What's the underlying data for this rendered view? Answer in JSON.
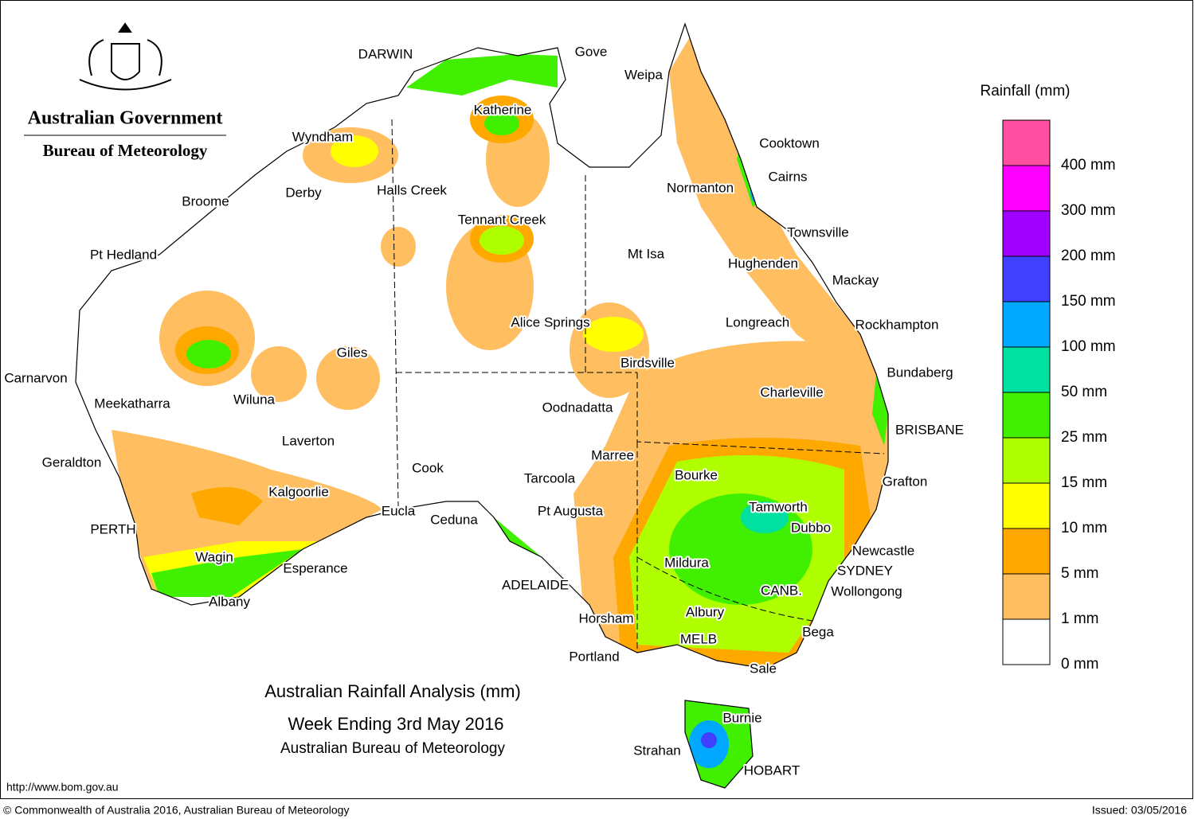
{
  "header": {
    "government": "Australian Government",
    "bureau": "Bureau of Meteorology"
  },
  "title": {
    "main": "Australian Rainfall Analysis (mm)",
    "period": "Week Ending 3rd May 2016",
    "source": "Australian Bureau of Meteorology"
  },
  "legend": {
    "title": "Rainfall (mm)",
    "colors": [
      "#ff4fa0",
      "#ff00ff",
      "#a000ff",
      "#4040ff",
      "#00a8ff",
      "#00e0a0",
      "#40f000",
      "#b0ff00",
      "#ffff00",
      "#ffa800",
      "#ffbe60",
      "#ffffff"
    ],
    "labels": [
      "400 mm",
      "300 mm",
      "200 mm",
      "150 mm",
      "100 mm",
      "50 mm",
      "25 mm",
      "15 mm",
      "10 mm",
      "5 mm",
      "1 mm",
      "0 mm"
    ]
  },
  "cities": [
    "DARWIN",
    "Gove",
    "Weipa",
    "Katherine",
    "Wyndham",
    "Cooktown",
    "Cairns",
    "Derby",
    "Halls Creek",
    "Broome",
    "Normanton",
    "Tennant Creek",
    "Townsville",
    "Pt Hedland",
    "Mt Isa",
    "Hughenden",
    "Mackay",
    "Longreach",
    "Alice Springs",
    "Rockhampton",
    "Giles",
    "Birdsville",
    "Bundaberg",
    "Carnarvon",
    "Charleville",
    "Wiluna",
    "Meekatharra",
    "Oodnadatta",
    "BRISBANE",
    "Laverton",
    "Marree",
    "Geraldton",
    "Cook",
    "Bourke",
    "Tarcoola",
    "Grafton",
    "Kalgoorlie",
    "Tamworth",
    "Eucla",
    "Pt Augusta",
    "Ceduna",
    "Dubbo",
    "PERTH",
    "Newcastle",
    "Wagin",
    "Mildura",
    "Esperance",
    "SYDNEY",
    "ADELAIDE",
    "CANB.",
    "Wollongong",
    "Albany",
    "Albury",
    "Horsham",
    "Bega",
    "MELB",
    "Portland",
    "Sale",
    "Burnie",
    "Strahan",
    "HOBART"
  ],
  "footer": {
    "url": "http://www.bom.gov.au",
    "copyright": "© Commonwealth of Australia 2016, Australian Bureau of Meteorology",
    "issued": "Issued: 03/05/2016"
  }
}
